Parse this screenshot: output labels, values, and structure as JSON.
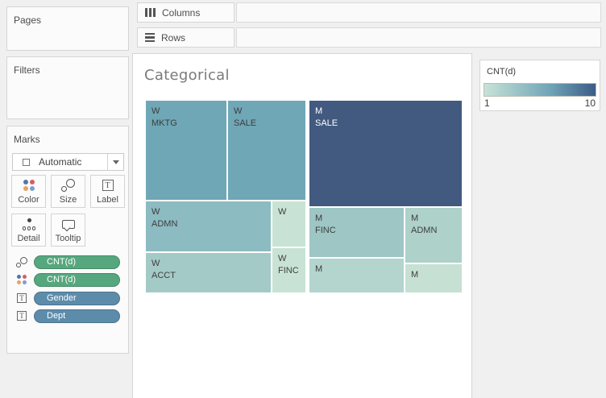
{
  "shelves": {
    "columns_label": "Columns",
    "rows_label": "Rows"
  },
  "panels": {
    "pages": {
      "title": "Pages"
    },
    "filters": {
      "title": "Filters"
    },
    "marks": {
      "title": "Marks",
      "mark_type": "Automatic",
      "buttons": {
        "color": "Color",
        "size": "Size",
        "label": "Label",
        "detail": "Detail",
        "tooltip": "Tooltip"
      },
      "pills": [
        {
          "icon": "size-icon",
          "label": "CNT(d)",
          "fill": "#56a77e"
        },
        {
          "icon": "color-icon",
          "label": "CNT(d)",
          "fill": "#56a77e"
        },
        {
          "icon": "text-icon",
          "label": "Gender",
          "fill": "#5d8cab"
        },
        {
          "icon": "text-icon",
          "label": "Dept",
          "fill": "#5d8cab"
        }
      ]
    }
  },
  "sheet": {
    "title": "Categorical"
  },
  "legend": {
    "title": "CNT(d)",
    "min_label": "1",
    "max_label": "10",
    "gradient": [
      "#c7e3d6",
      "#6fa3b7",
      "#3c5c86"
    ]
  },
  "chart_data": {
    "type": "treemap",
    "title": "Categorical",
    "color_field": "CNT(d)",
    "color_range": [
      1,
      10
    ],
    "tiles": [
      {
        "lines": [
          "W",
          "MKTG"
        ],
        "fill": "#6fa7b6",
        "text": "#3d3d3d",
        "value_estimate": 7
      },
      {
        "lines": [
          "W",
          "SALE"
        ],
        "fill": "#6fa7b6",
        "text": "#3d3d3d",
        "value_estimate": 7
      },
      {
        "lines": [
          "M",
          "SALE"
        ],
        "fill": "#425a80",
        "text": "#ffffff",
        "value_estimate": 10
      },
      {
        "lines": [
          "W",
          "ADMN"
        ],
        "fill": "#8cbbc1",
        "text": "#3d3d3d",
        "value_estimate": 5
      },
      {
        "lines": [
          "W"
        ],
        "fill": "#c8e3d5",
        "text": "#3d3d3d",
        "value_estimate": 1
      },
      {
        "lines": [
          "W",
          "ACCT"
        ],
        "fill": "#a4cac7",
        "text": "#3d3d3d",
        "value_estimate": 4
      },
      {
        "lines": [
          "W",
          "FINC"
        ],
        "fill": "#c8e3d5",
        "text": "#3d3d3d",
        "value_estimate": 2
      },
      {
        "lines": [
          "M",
          "FINC"
        ],
        "fill": "#9dc6c4",
        "text": "#3d3d3d",
        "value_estimate": 4
      },
      {
        "lines": [
          "M",
          "ADMN"
        ],
        "fill": "#aed1ca",
        "text": "#3d3d3d",
        "value_estimate": 3
      },
      {
        "lines": [
          "M"
        ],
        "fill": "#b3d5cd",
        "text": "#3d3d3d",
        "value_estimate": 3
      },
      {
        "lines": [
          "M"
        ],
        "fill": "#c6e0d4",
        "text": "#3d3d3d",
        "value_estimate": 2
      }
    ]
  }
}
